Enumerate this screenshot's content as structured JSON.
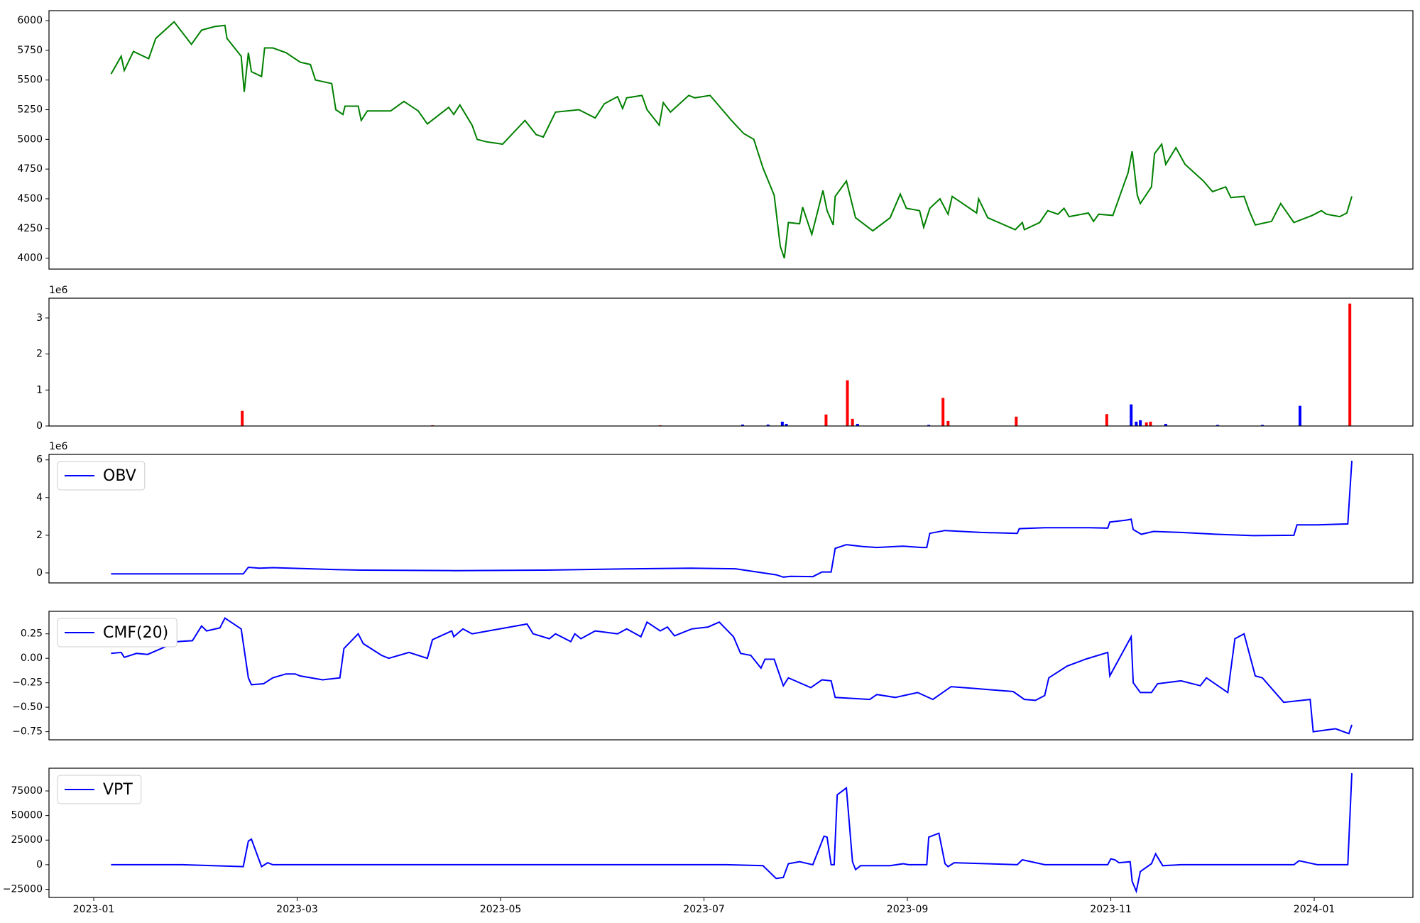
{
  "chart_data": [
    {
      "type": "line",
      "xlim": [
        0.56,
        13.97
      ],
      "ylim": [
        3908,
        6084
      ],
      "yticks": [
        4000,
        4250,
        4500,
        4750,
        5000,
        5250,
        5500,
        5750,
        6000
      ],
      "x": [
        1.17,
        1.27,
        1.3,
        1.39,
        1.54,
        1.61,
        1.79,
        1.96,
        2.06,
        2.19,
        2.29,
        2.31,
        2.45,
        2.48,
        2.52,
        2.55,
        2.65,
        2.68,
        2.76,
        2.89,
        3.03,
        3.13,
        3.18,
        3.34,
        3.38,
        3.45,
        3.47,
        3.6,
        3.63,
        3.69,
        3.92,
        4.05,
        4.19,
        4.28,
        4.49,
        4.54,
        4.6,
        4.72,
        4.77,
        4.86,
        5.02,
        5.24,
        5.35,
        5.42,
        5.54,
        5.77,
        5.93,
        6.02,
        6.15,
        6.2,
        6.24,
        6.39,
        6.44,
        6.56,
        6.6,
        6.67,
        6.85,
        6.91,
        7.06,
        7.18,
        7.27,
        7.39,
        7.49,
        7.58,
        7.69,
        7.75,
        7.79,
        7.83,
        7.94,
        7.97,
        8.06,
        8.17,
        8.21,
        8.27,
        8.29,
        8.4,
        8.49,
        8.66,
        8.83,
        8.93,
        8.99,
        9.12,
        9.16,
        9.22,
        9.32,
        9.4,
        9.44,
        9.68,
        9.7,
        9.79,
        10.06,
        10.13,
        10.15,
        10.3,
        10.38,
        10.48,
        10.54,
        10.59,
        10.78,
        10.83,
        10.88,
        11.02,
        11.12,
        11.17,
        11.21,
        11.26,
        11.29,
        11.4,
        11.43,
        11.5,
        11.54,
        11.64,
        11.73,
        11.91,
        12.0,
        12.13,
        12.18,
        12.31,
        12.36,
        12.42,
        12.58,
        12.67,
        12.8,
        12.98,
        13.07,
        13.12,
        13.25,
        13.32,
        13.37
      ],
      "series": [
        {
          "color": "#008000",
          "values": [
            5550,
            5700,
            5580,
            5740,
            5680,
            5850,
            5990,
            5800,
            5920,
            5950,
            5960,
            5850,
            5700,
            5400,
            5730,
            5570,
            5530,
            5770,
            5770,
            5730,
            5650,
            5630,
            5500,
            5470,
            5250,
            5210,
            5280,
            5280,
            5160,
            5240,
            5240,
            5320,
            5240,
            5130,
            5270,
            5210,
            5290,
            5120,
            5000,
            4980,
            4960,
            5160,
            5040,
            5020,
            5230,
            5250,
            5180,
            5300,
            5360,
            5260,
            5350,
            5370,
            5250,
            5120,
            5310,
            5230,
            5370,
            5350,
            5370,
            5250,
            5160,
            5050,
            5000,
            4760,
            4530,
            4100,
            4000,
            4300,
            4290,
            4430,
            4200,
            4570,
            4400,
            4280,
            4520,
            4650,
            4340,
            4230,
            4340,
            4540,
            4420,
            4400,
            4260,
            4420,
            4500,
            4370,
            4520,
            4380,
            4500,
            4340,
            4240,
            4300,
            4240,
            4300,
            4400,
            4370,
            4420,
            4350,
            4380,
            4310,
            4370,
            4360,
            4600,
            4720,
            4900,
            4530,
            4460,
            4600,
            4880,
            4960,
            4790,
            4930,
            4790,
            4650,
            4560,
            4600,
            4510,
            4520,
            4400,
            4280,
            4310,
            4460,
            4300,
            4360,
            4400,
            4370,
            4350,
            4380,
            4520
          ]
        }
      ]
    },
    {
      "type": "bar",
      "xlim": [
        0.56,
        13.97
      ],
      "ylim": [
        0,
        3550000
      ],
      "y_offset_label": "1e6",
      "yticks": [
        0,
        {
          "value": 1000000,
          "label": "1"
        },
        {
          "value": 2000000,
          "label": "2"
        },
        {
          "value": 3000000,
          "label": "3"
        }
      ],
      "x": [
        2.46,
        4.33,
        6.57,
        7.38,
        7.63,
        7.77,
        7.81,
        8.2,
        8.41,
        8.46,
        8.51,
        9.21,
        9.35,
        9.4,
        10.07,
        10.96,
        11.2,
        11.25,
        11.29,
        11.35,
        11.39,
        11.54,
        12.05,
        12.49,
        12.86,
        13.35
      ],
      "values": [
        420000,
        20000,
        20000,
        40000,
        40000,
        120000,
        60000,
        320000,
        1270000,
        200000,
        60000,
        30000,
        780000,
        140000,
        260000,
        330000,
        600000,
        120000,
        160000,
        100000,
        120000,
        60000,
        30000,
        30000,
        560000,
        3400000
      ],
      "colors": [
        "#ff0000",
        "#ff0000",
        "#ff0000",
        "#0000ff",
        "#0000ff",
        "#0000ff",
        "#0000ff",
        "#ff0000",
        "#ff0000",
        "#ff0000",
        "#0000ff",
        "#0000ff",
        "#ff0000",
        "#ff0000",
        "#ff0000",
        "#ff0000",
        "#0000ff",
        "#0000ff",
        "#0000ff",
        "#ff0000",
        "#ff0000",
        "#0000ff",
        "#0000ff",
        "#0000ff",
        "#0000ff",
        "#ff0000"
      ]
    },
    {
      "type": "line",
      "xlim": [
        0.56,
        13.97
      ],
      "ylim": [
        -530000,
        6290000
      ],
      "y_offset_label": "1e6",
      "legend": "upper left",
      "yticks": [
        0,
        {
          "value": 2000000,
          "label": "2"
        },
        {
          "value": 4000000,
          "label": "4"
        },
        {
          "value": 6000000,
          "label": "6"
        }
      ],
      "x": [
        1.17,
        1.87,
        2.47,
        2.52,
        2.63,
        2.76,
        3.38,
        3.65,
        4.54,
        5.44,
        6.33,
        6.87,
        7.31,
        7.58,
        7.71,
        7.78,
        7.85,
        8.07,
        8.16,
        8.25,
        8.29,
        8.4,
        8.56,
        8.7,
        8.96,
        9.14,
        9.19,
        9.22,
        9.37,
        9.72,
        10.08,
        10.1,
        10.35,
        10.79,
        10.97,
        10.99,
        11.15,
        11.2,
        11.22,
        11.3,
        11.42,
        11.69,
        12.04,
        12.4,
        12.8,
        12.83,
        13.03,
        13.33,
        13.37
      ],
      "series": [
        {
          "name": "OBV",
          "color": "#0000ff",
          "values": [
            -50000,
            -50000,
            -50000,
            300000,
            250000,
            280000,
            180000,
            150000,
            120000,
            150000,
            220000,
            250000,
            220000,
            0,
            -100000,
            -220000,
            -180000,
            -200000,
            50000,
            50000,
            1300000,
            1500000,
            1400000,
            1350000,
            1420000,
            1350000,
            1350000,
            2100000,
            2250000,
            2150000,
            2100000,
            2350000,
            2400000,
            2400000,
            2380000,
            2700000,
            2800000,
            2850000,
            2300000,
            2050000,
            2200000,
            2150000,
            2050000,
            1980000,
            2000000,
            2550000,
            2550000,
            2600000,
            5950000
          ]
        }
      ]
    },
    {
      "type": "line",
      "xlim": [
        0.56,
        13.97
      ],
      "ylim": [
        -0.833,
        0.48
      ],
      "legend": "upper left",
      "yticks": [
        {
          "value": -0.75,
          "label": "−0.75"
        },
        {
          "value": -0.5,
          "label": "−0.50"
        },
        {
          "value": -0.25,
          "label": "−0.25"
        },
        {
          "value": 0,
          "label": "0.00"
        },
        0.25
      ],
      "x": [
        1.17,
        1.27,
        1.3,
        1.42,
        1.53,
        1.82,
        1.97,
        2.06,
        2.11,
        2.24,
        2.29,
        2.45,
        2.52,
        2.55,
        2.67,
        2.76,
        2.89,
        2.98,
        3.03,
        3.25,
        3.42,
        3.46,
        3.6,
        3.65,
        3.83,
        3.9,
        4.1,
        4.28,
        4.33,
        4.52,
        4.54,
        4.63,
        4.72,
        5.26,
        5.32,
        5.48,
        5.54,
        5.69,
        5.73,
        5.79,
        5.93,
        6.15,
        6.24,
        6.38,
        6.44,
        6.57,
        6.64,
        6.71,
        6.88,
        7.04,
        7.15,
        7.29,
        7.36,
        7.46,
        7.56,
        7.6,
        7.69,
        7.78,
        7.83,
        8.05,
        8.16,
        8.25,
        8.29,
        8.63,
        8.7,
        8.88,
        9.1,
        9.25,
        9.43,
        9.68,
        10.04,
        10.15,
        10.26,
        10.35,
        10.39,
        10.57,
        10.75,
        10.97,
        10.99,
        11.2,
        11.22,
        11.29,
        11.4,
        11.46,
        11.69,
        11.88,
        11.94,
        12.15,
        12.22,
        12.31,
        12.42,
        12.49,
        12.7,
        12.96,
        12.99,
        13.21,
        13.34,
        13.37
      ],
      "series": [
        {
          "name": "CMF(20)",
          "color": "#0000ff",
          "values": [
            0.05,
            0.06,
            0.01,
            0.05,
            0.04,
            0.17,
            0.18,
            0.33,
            0.28,
            0.31,
            0.41,
            0.3,
            -0.2,
            -0.27,
            -0.26,
            -0.2,
            -0.16,
            -0.16,
            -0.18,
            -0.22,
            -0.2,
            0.1,
            0.25,
            0.15,
            0.03,
            0.0,
            0.06,
            0.0,
            0.19,
            0.28,
            0.22,
            0.3,
            0.25,
            0.35,
            0.25,
            0.2,
            0.25,
            0.17,
            0.25,
            0.2,
            0.28,
            0.25,
            0.3,
            0.22,
            0.37,
            0.28,
            0.32,
            0.23,
            0.3,
            0.32,
            0.37,
            0.22,
            0.05,
            0.03,
            -0.1,
            -0.01,
            -0.01,
            -0.28,
            -0.2,
            -0.3,
            -0.22,
            -0.23,
            -0.4,
            -0.42,
            -0.37,
            -0.4,
            -0.35,
            -0.42,
            -0.29,
            -0.31,
            -0.34,
            -0.42,
            -0.43,
            -0.38,
            -0.2,
            -0.08,
            -0.01,
            0.06,
            -0.18,
            0.22,
            -0.25,
            -0.35,
            -0.35,
            -0.26,
            -0.23,
            -0.28,
            -0.2,
            -0.35,
            0.2,
            0.25,
            -0.18,
            -0.2,
            -0.45,
            -0.42,
            -0.75,
            -0.72,
            -0.77,
            -0.68
          ]
        }
      ]
    },
    {
      "type": "line",
      "xlim": [
        0.56,
        13.97
      ],
      "ylim": [
        -33300,
        98100
      ],
      "legend": "upper left",
      "yticks": [
        {
          "value": -25000,
          "label": "−25000"
        },
        0,
        25000,
        50000,
        75000
      ],
      "xticks": [
        {
          "value": 1,
          "label": "2023-01"
        },
        {
          "value": 3,
          "label": "2023-03"
        },
        {
          "value": 5,
          "label": "2023-05"
        },
        {
          "value": 7,
          "label": "2023-07"
        },
        {
          "value": 9,
          "label": "2023-09"
        },
        {
          "value": 11,
          "label": "2023-11"
        },
        {
          "value": 13,
          "label": "2024-01"
        }
      ],
      "x": [
        1.17,
        1.87,
        2.47,
        2.52,
        2.55,
        2.65,
        2.71,
        2.76,
        3.65,
        5.44,
        7.22,
        7.58,
        7.71,
        7.78,
        7.83,
        7.94,
        8.07,
        8.18,
        8.21,
        8.25,
        8.28,
        8.31,
        8.4,
        8.46,
        8.49,
        8.54,
        8.83,
        8.96,
        9.01,
        9.19,
        9.21,
        9.31,
        9.37,
        9.4,
        9.46,
        10.08,
        10.13,
        10.35,
        10.97,
        11.0,
        11.04,
        11.08,
        11.19,
        11.21,
        11.25,
        11.29,
        11.4,
        11.44,
        11.51,
        11.69,
        12.58,
        12.8,
        12.85,
        13.03,
        13.33,
        13.37
      ],
      "series": [
        {
          "name": "VPT",
          "color": "#0000ff",
          "values": [
            0,
            0,
            -2000,
            24000,
            26000,
            -2000,
            2000,
            0,
            0,
            0,
            0,
            -1000,
            -14000,
            -13000,
            1000,
            3000,
            0,
            29000,
            28000,
            0,
            0,
            71000,
            78000,
            3000,
            -5000,
            -1000,
            -1000,
            1000,
            0,
            0,
            28000,
            32000,
            1000,
            -2000,
            2000,
            0,
            5000,
            0,
            0,
            6000,
            5000,
            2000,
            3000,
            -17000,
            -27000,
            -7000,
            1000,
            11000,
            -1000,
            0,
            0,
            0,
            4000,
            0,
            0,
            93000
          ]
        }
      ]
    }
  ]
}
